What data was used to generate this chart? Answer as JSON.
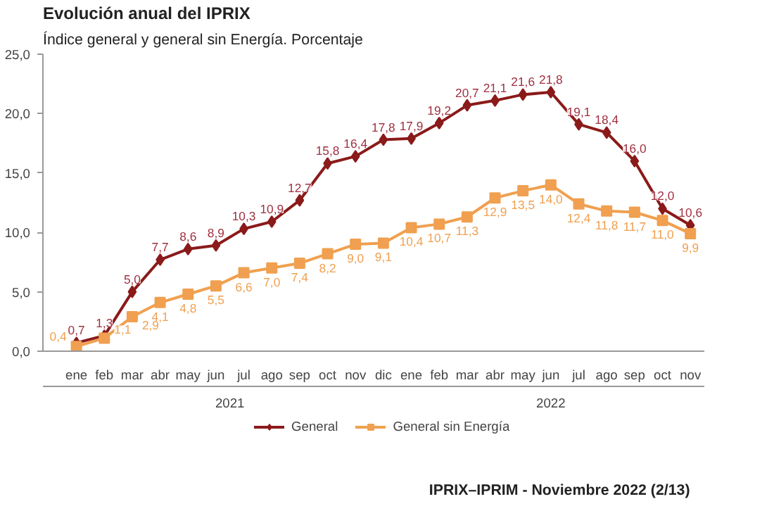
{
  "chart_data": {
    "type": "line",
    "title": "Evolución anual del IPRIX",
    "subtitle": "Índice general y general sin Energía. Porcentaje",
    "categories": [
      "ene",
      "feb",
      "mar",
      "abr",
      "may",
      "jun",
      "jul",
      "ago",
      "sep",
      "oct",
      "nov",
      "dic",
      "ene",
      "feb",
      "mar",
      "abr",
      "may",
      "jun",
      "jul",
      "ago",
      "sep",
      "oct",
      "nov"
    ],
    "series": [
      {
        "name": "General",
        "color": "#8b1a1a",
        "marker": "diamond",
        "values": [
          0.7,
          1.3,
          5.0,
          7.7,
          8.6,
          8.9,
          10.3,
          10.9,
          12.7,
          15.8,
          16.4,
          17.8,
          17.9,
          19.2,
          20.7,
          21.1,
          21.6,
          21.8,
          19.1,
          18.4,
          16.0,
          12.0,
          10.6
        ],
        "value_labels": [
          "0,7",
          "1,3",
          "5,0",
          "7,7",
          "8,6",
          "8,9",
          "10,3",
          "10,9",
          "12,7",
          "15,8",
          "16,4",
          "17,8",
          "17,9",
          "19,2",
          "20,7",
          "21,1",
          "21,6",
          "21,8",
          "19,1",
          "18,4",
          "16,0",
          "12,0",
          "10,6"
        ]
      },
      {
        "name": "General sin Energía",
        "color": "#f0a050",
        "marker": "square",
        "values": [
          0.4,
          1.1,
          2.9,
          4.1,
          4.8,
          5.5,
          6.6,
          7.0,
          7.4,
          8.2,
          9.0,
          9.1,
          10.4,
          10.7,
          11.3,
          12.9,
          13.5,
          14.0,
          12.4,
          11.8,
          11.7,
          11.0,
          9.9
        ],
        "value_labels": [
          "0,4",
          "1,1",
          "2,9",
          "4,1",
          "4,8",
          "5,5",
          "6,6",
          "7,0",
          "7,4",
          "8,2",
          "9,0",
          "9,1",
          "10,4",
          "10,7",
          "11,3",
          "12,9",
          "13,5",
          "14,0",
          "12,4",
          "11,8",
          "11,7",
          "11,0",
          "9,9"
        ]
      }
    ],
    "ylim": [
      0,
      25
    ],
    "yticks": [
      {
        "value": 0,
        "label": "0,0"
      },
      {
        "value": 5,
        "label": "5,0"
      },
      {
        "value": 10,
        "label": "10,0"
      },
      {
        "value": 15,
        "label": "15,0"
      },
      {
        "value": 20,
        "label": "20,0"
      },
      {
        "value": 25,
        "label": "25,0"
      }
    ],
    "data_labels": true,
    "grid": false,
    "legend": "bottom",
    "annotations": [
      "2021",
      "2022",
      "IPRIX–IPRIM - Noviembre 2022 (2/13)"
    ]
  }
}
